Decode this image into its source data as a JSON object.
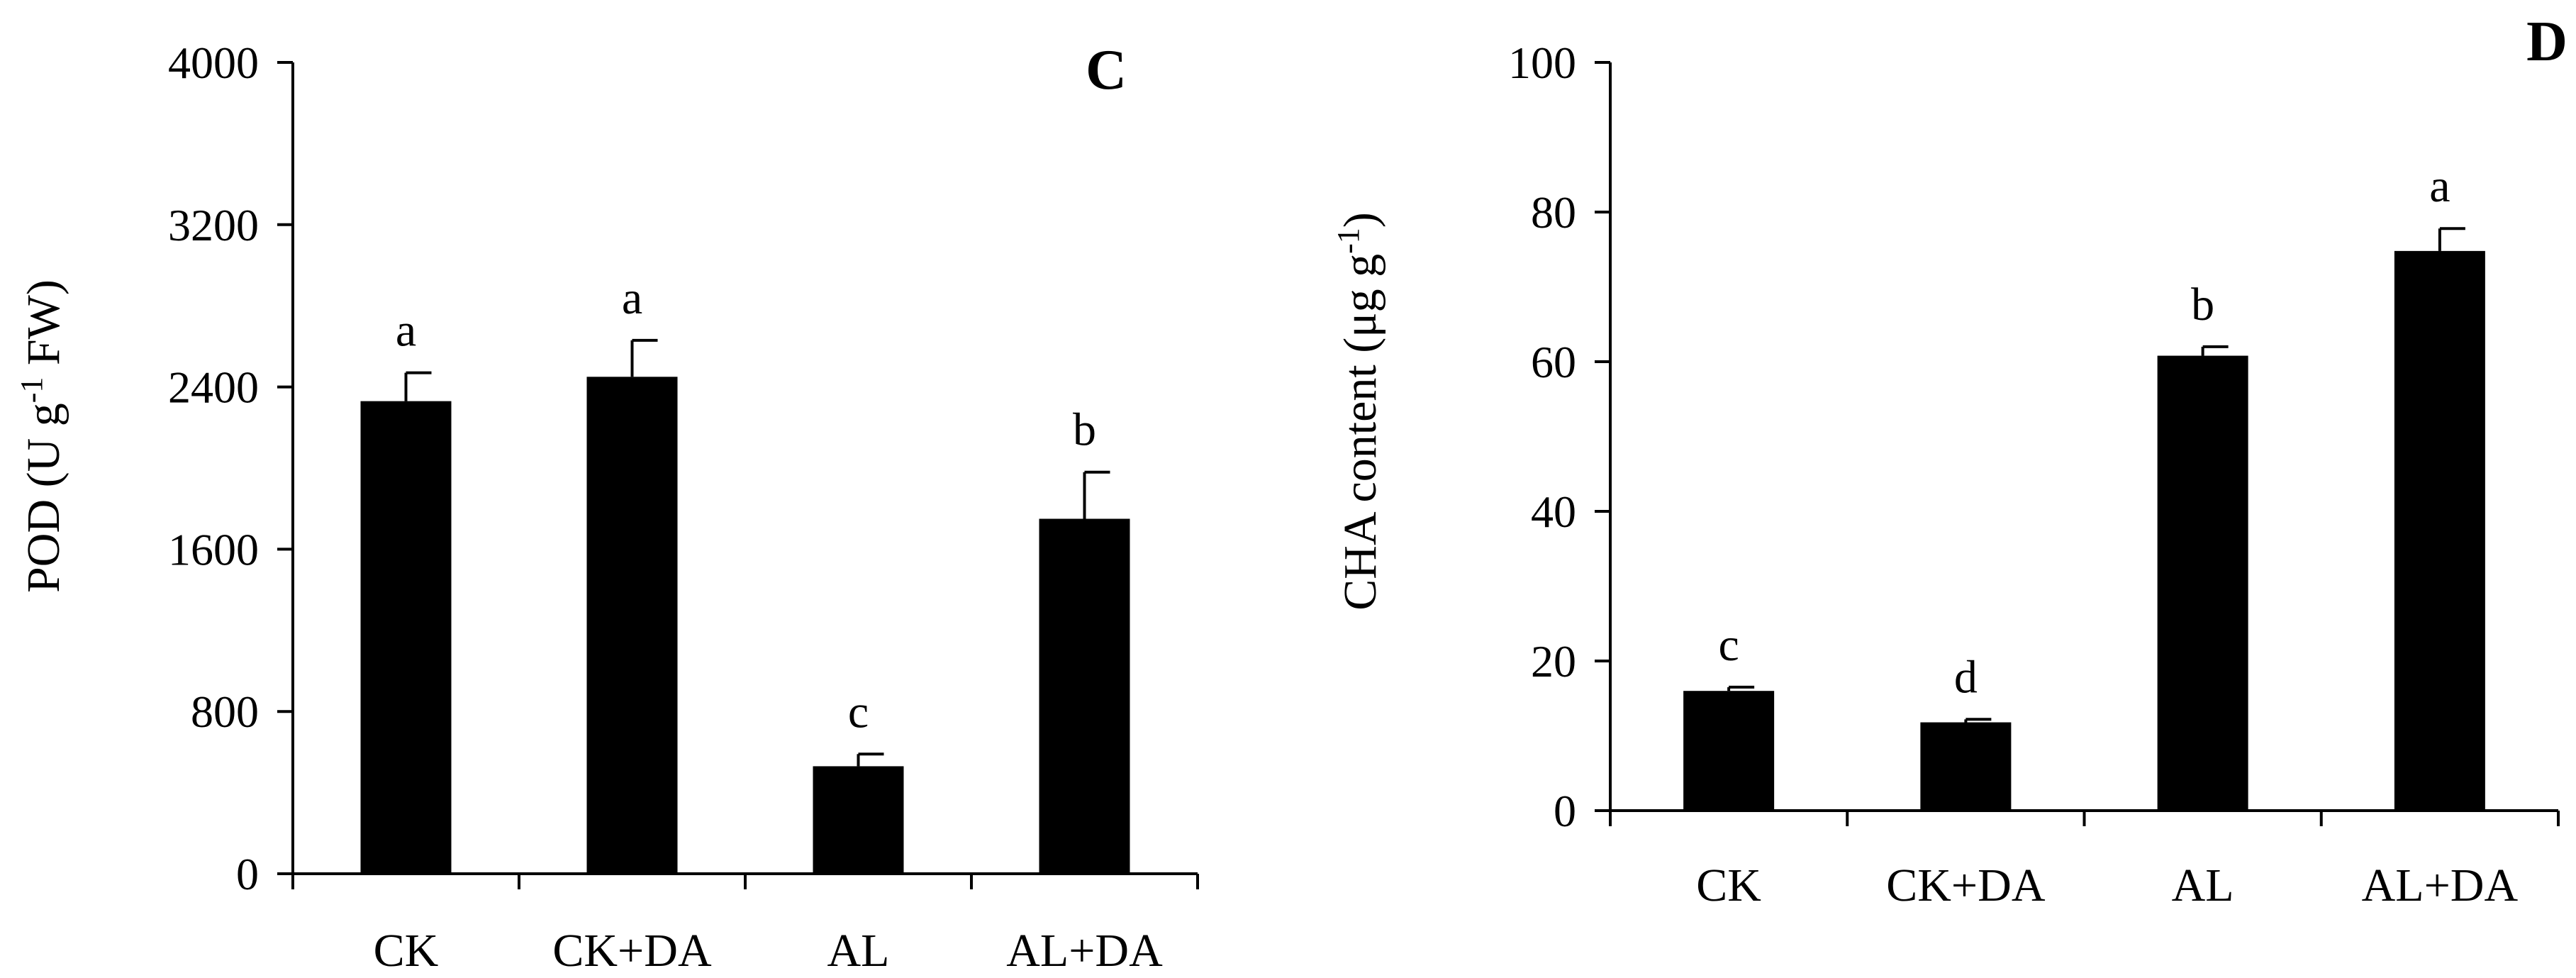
{
  "chart_data": [
    {
      "type": "bar",
      "panel_label": "C",
      "ylabel": "POD (U g",
      "ylabel_sup": "-1",
      "ylabel_tail": " FW)",
      "categories": [
        "CK",
        "CK+DA",
        "AL",
        "AL+DA"
      ],
      "values": [
        2330,
        2450,
        530,
        1750
      ],
      "errors": [
        140,
        180,
        60,
        230
      ],
      "sig_letters": [
        "a",
        "a",
        "c",
        "b"
      ],
      "ylim": [
        0,
        4000
      ],
      "yticks": [
        "0",
        "800",
        "1600",
        "2400",
        "3200",
        "4000"
      ],
      "grid": false,
      "bar_color": "#000000"
    },
    {
      "type": "bar",
      "panel_label": "D",
      "ylabel": "CHA content (μg g",
      "ylabel_sup": "-1",
      "ylabel_tail": ")",
      "categories": [
        "CK",
        "CK+DA",
        "AL",
        "AL+DA"
      ],
      "values": [
        16,
        11.8,
        60.8,
        74.8
      ],
      "errors": [
        0.5,
        0.4,
        1.2,
        3
      ],
      "sig_letters": [
        "c",
        "d",
        "b",
        "a"
      ],
      "ylim": [
        0,
        100
      ],
      "yticks": [
        "0",
        "20",
        "40",
        "60",
        "80",
        "100"
      ],
      "grid": false,
      "bar_color": "#000000"
    }
  ]
}
